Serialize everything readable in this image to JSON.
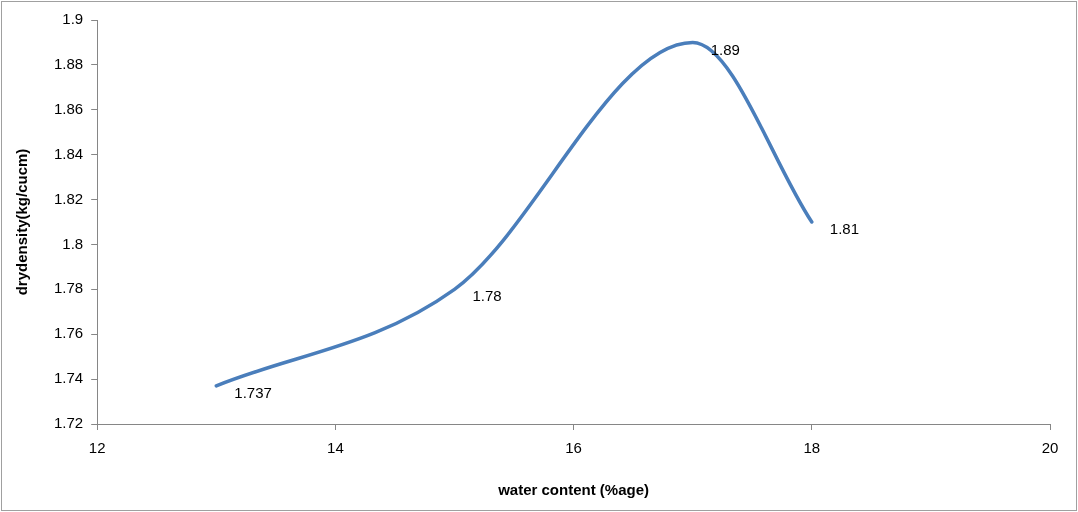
{
  "chart_data": {
    "type": "line",
    "xlabel": "water content (%age)",
    "ylabel": "drydensity(kg/cucm)",
    "x": [
      13,
      15,
      17,
      18
    ],
    "series": [
      {
        "color": "#4a7ebb",
        "values": [
          1.737,
          1.78,
          1.89,
          1.81
        ]
      }
    ],
    "xlim": [
      12,
      20
    ],
    "xticks": [
      12,
      14,
      16,
      18,
      20
    ],
    "ylim": [
      1.72,
      1.9
    ],
    "yticks": [
      1.72,
      1.74,
      1.76,
      1.78,
      1.8,
      1.82,
      1.84,
      1.86,
      1.88,
      1.9
    ],
    "grid": false,
    "legend": false,
    "marker": "none",
    "line_style": "solid",
    "data_labels": true
  }
}
